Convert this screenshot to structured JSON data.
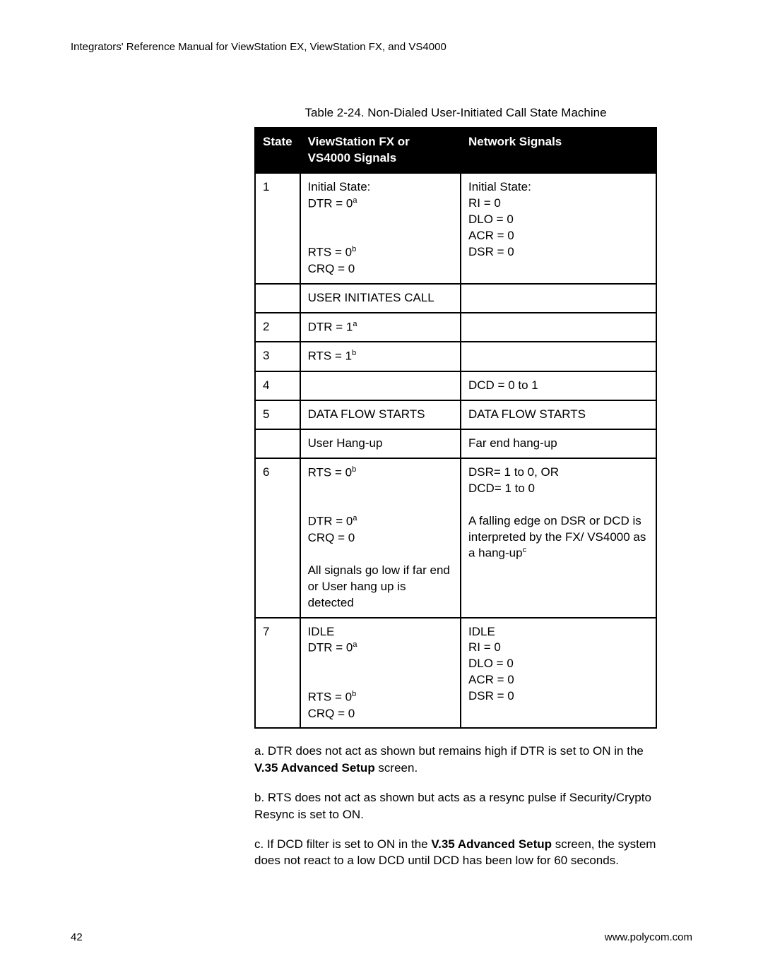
{
  "header": "Integrators' Reference Manual for ViewStation EX, ViewStation FX, and VS4000",
  "table": {
    "caption": "Table 2-24.  Non-Dialed User-Initiated Call State Machine",
    "columns": [
      "State",
      "ViewStation FX or VS4000 Signals",
      "Network Signals"
    ],
    "rows": [
      {
        "state": "1",
        "vs_prefix": "Initial State:\nDTR = 0",
        "vs_sup1": "a",
        "vs_mid": "\nRTS = 0",
        "vs_sup2": "b",
        "vs_suffix": "\nCRQ = 0",
        "net": "Initial State:\nRI = 0\nDLO = 0\nACR = 0\nDSR = 0"
      },
      {
        "state": "",
        "vs_plain": "USER INITIATES CALL",
        "net": ""
      },
      {
        "state": "2",
        "vs_prefix": "DTR = 1",
        "vs_sup1": "a",
        "net": ""
      },
      {
        "state": "3",
        "vs_prefix": "RTS = 1",
        "vs_sup1": "b",
        "net": ""
      },
      {
        "state": "4",
        "vs_plain": "",
        "net": "DCD = 0 to 1"
      },
      {
        "state": "5",
        "vs_plain": "DATA FLOW STARTS",
        "net": "DATA FLOW STARTS"
      },
      {
        "state": "",
        "vs_plain": "User Hang-up",
        "net": "Far end hang-up"
      },
      {
        "state": "6",
        "vs_prefix": "RTS = 0",
        "vs_sup1": "b",
        "vs_mid": "\nDTR = 0",
        "vs_sup2": "a",
        "vs_suffix": "\nCRQ = 0\n\nAll signals go low if far end or User hang up is detected",
        "net_prefix": "DSR= 1 to 0, OR\nDCD= 1 to 0\n\nA falling edge on DSR or DCD is interpreted by the FX/ VS4000 as a hang-up",
        "net_sup": "c"
      },
      {
        "state": "7",
        "vs_prefix": "IDLE\nDTR = 0",
        "vs_sup1": "a",
        "vs_mid": "\nRTS = 0",
        "vs_sup2": "b",
        "vs_suffix": "\nCRQ = 0",
        "net": "IDLE\nRI = 0\nDLO = 0\nACR = 0\nDSR = 0"
      }
    ]
  },
  "footnotes": {
    "a_prefix": "a. DTR does not act as shown but remains high if DTR is set to ON in the ",
    "a_bold": "V.35 Advanced Setup",
    "a_suffix": " screen.",
    "b": "b. RTS does not act as shown but acts as a resync pulse if Security/Crypto Resync is set to ON.",
    "c_prefix": "c. If DCD filter is set to ON in the ",
    "c_bold": "V.35 Advanced Setup",
    "c_suffix": " screen, the system does not react to a low DCD until DCD has been low for 60 seconds."
  },
  "footer": {
    "page": "42",
    "url": "www.polycom.com"
  }
}
